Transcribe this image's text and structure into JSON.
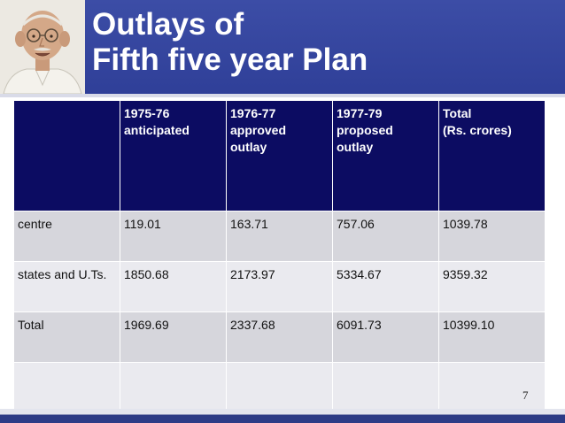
{
  "slide": {
    "title_line1": "Outlays of",
    "title_line2": "Fifth five year Plan",
    "page_number": "7"
  },
  "table": {
    "headers": [
      [
        ""
      ],
      [
        "1975-76",
        "anticipated"
      ],
      [
        "1976-77",
        "approved",
        "outlay"
      ],
      [
        "1977-79",
        "proposed",
        "outlay"
      ],
      [
        "Total",
        "(Rs. crores)"
      ]
    ],
    "rows": [
      [
        "centre",
        "119.01",
        "163.71",
        "757.06",
        "1039.78"
      ],
      [
        "states and U.Ts.",
        "1850.68",
        "2173.97",
        "5334.67",
        "9359.32"
      ],
      [
        "Total",
        "1969.69",
        "2337.68",
        "6091.73",
        "10399.10"
      ],
      [
        "",
        "",
        "",
        "",
        ""
      ]
    ]
  },
  "colors": {
    "header_band": "#2f3f98",
    "table_header": "#0c0c62",
    "row_fill": "#d6d6dc",
    "row_fill_alt": "#eaeaef"
  },
  "icons": {
    "portrait": "gandhi-portrait"
  }
}
